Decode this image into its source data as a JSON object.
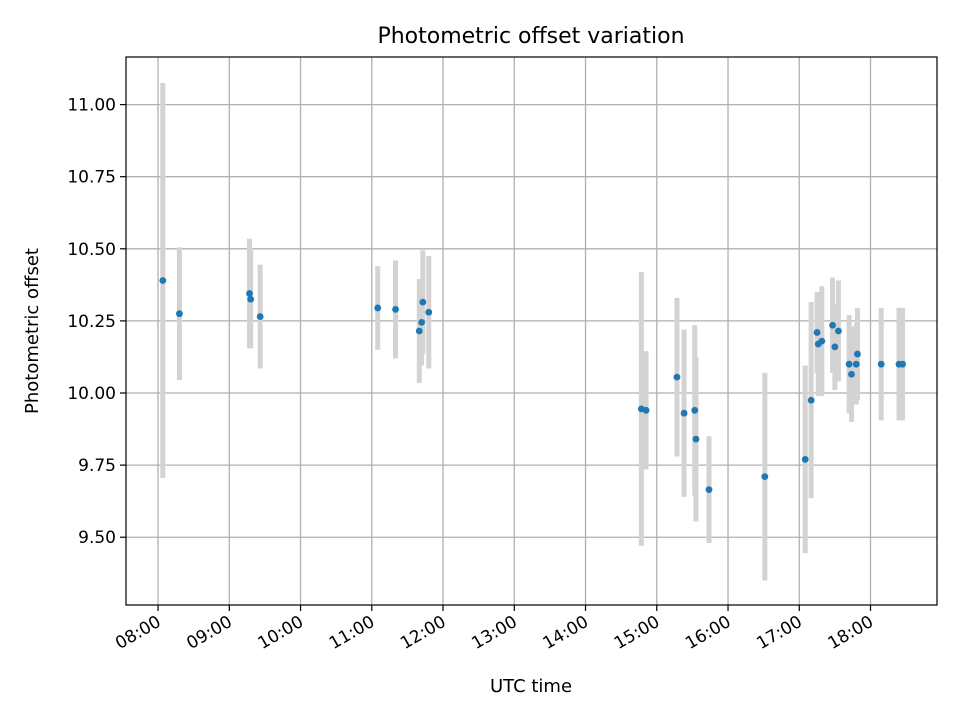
{
  "chart_data": {
    "type": "scatter",
    "title": "Photometric offset variation",
    "xlabel": "UTC time",
    "ylabel": "Photometric offset",
    "x_ticks": [
      "08:00",
      "09:00",
      "10:00",
      "11:00",
      "12:00",
      "13:00",
      "14:00",
      "15:00",
      "16:00",
      "17:00",
      "18:00"
    ],
    "y_ticks": [
      "9.50",
      "9.75",
      "10.00",
      "10.25",
      "10.50",
      "10.75",
      "11.00"
    ],
    "xlim": [
      "07:33",
      "18:56"
    ],
    "ylim": [
      9.265,
      11.165
    ],
    "grid": true,
    "colors": {
      "marker": "#1f77b4",
      "errorbar": "#d3d3d3",
      "grid": "#b0b0b0"
    },
    "points": [
      {
        "x": "08:04",
        "y": 10.39,
        "err": 0.685
      },
      {
        "x": "08:18",
        "y": 10.275,
        "err": 0.23
      },
      {
        "x": "09:17",
        "y": 10.345,
        "err": 0.19
      },
      {
        "x": "09:18",
        "y": 10.325,
        "err": 0.17
      },
      {
        "x": "09:26",
        "y": 10.265,
        "err": 0.18
      },
      {
        "x": "11:05",
        "y": 10.295,
        "err": 0.145
      },
      {
        "x": "11:20",
        "y": 10.29,
        "err": 0.17
      },
      {
        "x": "11:40",
        "y": 10.215,
        "err": 0.18
      },
      {
        "x": "11:42",
        "y": 10.245,
        "err": 0.15
      },
      {
        "x": "11:43",
        "y": 10.315,
        "err": 0.18
      },
      {
        "x": "11:48",
        "y": 10.28,
        "err": 0.195
      },
      {
        "x": "14:47",
        "y": 9.945,
        "err": 0.475
      },
      {
        "x": "14:51",
        "y": 9.94,
        "err": 0.205
      },
      {
        "x": "15:17",
        "y": 10.055,
        "err": 0.275
      },
      {
        "x": "15:23",
        "y": 9.93,
        "err": 0.29
      },
      {
        "x": "15:32",
        "y": 9.94,
        "err": 0.295
      },
      {
        "x": "15:33",
        "y": 9.84,
        "err": 0.285
      },
      {
        "x": "15:44",
        "y": 9.665,
        "err": 0.185
      },
      {
        "x": "16:31",
        "y": 9.71,
        "err": 0.36
      },
      {
        "x": "17:05",
        "y": 9.77,
        "err": 0.325
      },
      {
        "x": "17:10",
        "y": 9.975,
        "err": 0.34
      },
      {
        "x": "17:15",
        "y": 10.21,
        "err": 0.14
      },
      {
        "x": "17:16",
        "y": 10.17,
        "err": 0.18
      },
      {
        "x": "17:19",
        "y": 10.18,
        "err": 0.19
      },
      {
        "x": "17:28",
        "y": 10.235,
        "err": 0.165
      },
      {
        "x": "17:30",
        "y": 10.16,
        "err": 0.15
      },
      {
        "x": "17:33",
        "y": 10.215,
        "err": 0.175
      },
      {
        "x": "17:42",
        "y": 10.1,
        "err": 0.17
      },
      {
        "x": "17:44",
        "y": 10.065,
        "err": 0.165
      },
      {
        "x": "17:48",
        "y": 10.1,
        "err": 0.14
      },
      {
        "x": "17:49",
        "y": 10.135,
        "err": 0.16
      },
      {
        "x": "18:09",
        "y": 10.1,
        "err": 0.195
      },
      {
        "x": "18:24",
        "y": 10.1,
        "err": 0.195
      },
      {
        "x": "18:27",
        "y": 10.1,
        "err": 0.195
      }
    ]
  }
}
